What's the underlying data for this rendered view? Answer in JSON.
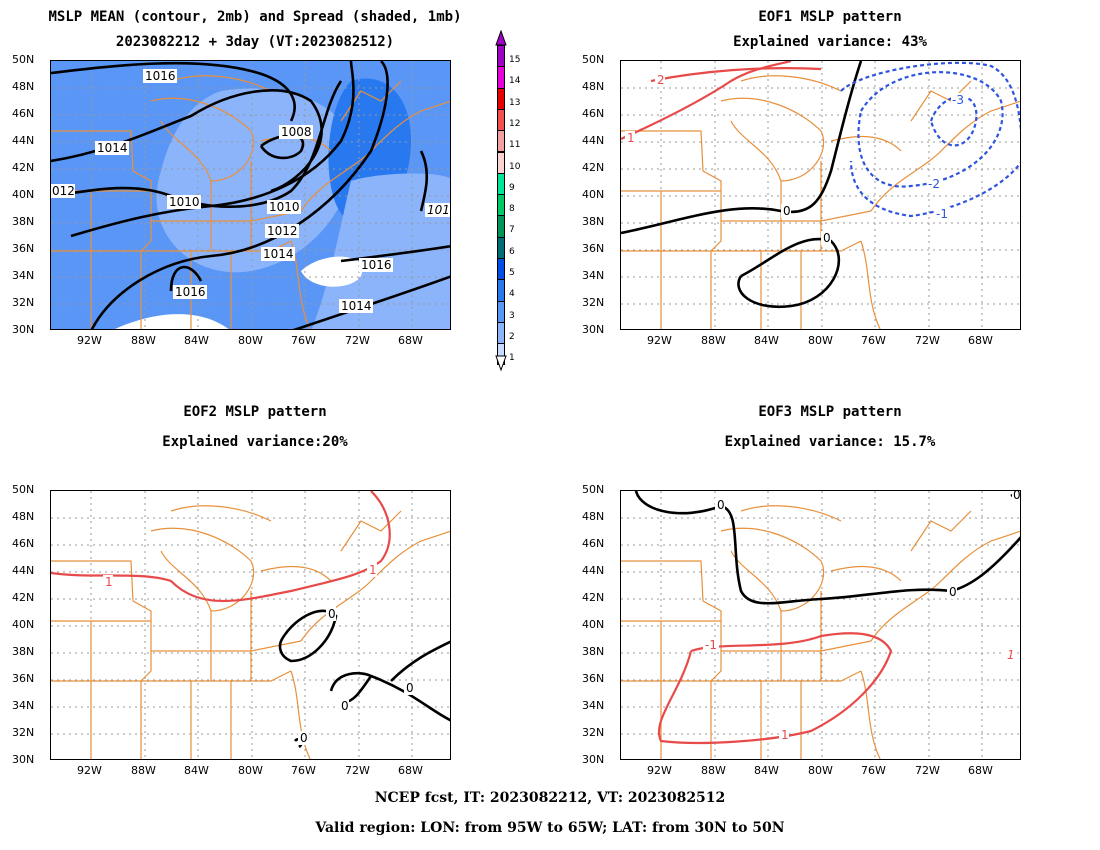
{
  "panels": {
    "mean": {
      "title1": "MSLP MEAN (contour, 2mb) and Spread (shaded, 1mb)",
      "title2": "2023082212 + 3day (VT:2023082512)",
      "contour_labels": [
        "1016",
        "1014",
        "012",
        "1010",
        "1008",
        "1010",
        "1012",
        "1014",
        "1016",
        "1014",
        "1016",
        "101"
      ]
    },
    "eof1": {
      "title1": "EOF1 MSLP pattern",
      "title2": "Explained variance: 43%",
      "contour_labels": [
        "2",
        "1",
        "0",
        "0",
        "-3",
        "-2",
        "-1"
      ]
    },
    "eof2": {
      "title1": "EOF2 MSLP pattern",
      "title2": "Explained variance:20%",
      "contour_labels": [
        "1",
        "1",
        "0",
        "0",
        "0",
        "0"
      ]
    },
    "eof3": {
      "title1": "EOF3 MSLP pattern",
      "title2": "Explained variance: 15.7%",
      "contour_labels": [
        "0",
        "0",
        "-1",
        "1",
        "1",
        "0"
      ]
    }
  },
  "lat_labels": [
    "50N",
    "48N",
    "46N",
    "44N",
    "42N",
    "40N",
    "38N",
    "36N",
    "34N",
    "32N",
    "30N"
  ],
  "lon_labels": [
    "92W",
    "88W",
    "84W",
    "80W",
    "76W",
    "72W",
    "68W"
  ],
  "colorbar": {
    "labels": [
      "15",
      "14",
      "13",
      "12",
      "11",
      "10",
      "9",
      "8",
      "7",
      "6",
      "5",
      "4",
      "3",
      "2",
      "1"
    ],
    "colors": [
      "#a000c8",
      "#e600dc",
      "#e60000",
      "#f05050",
      "#f5a0a0",
      "#fad2d2",
      "#00e696",
      "#00c864",
      "#00965a",
      "#006e78",
      "#0050e6",
      "#2878f0",
      "#5a96f5",
      "#8cb4fa",
      "#c8dcff"
    ]
  },
  "footer": {
    "line1": "NCEP fcst, IT: 2023082212, VT: 2023082512",
    "line2": "Valid region: LON: from 95W to 65W; LAT: from 30N to 50N"
  }
}
